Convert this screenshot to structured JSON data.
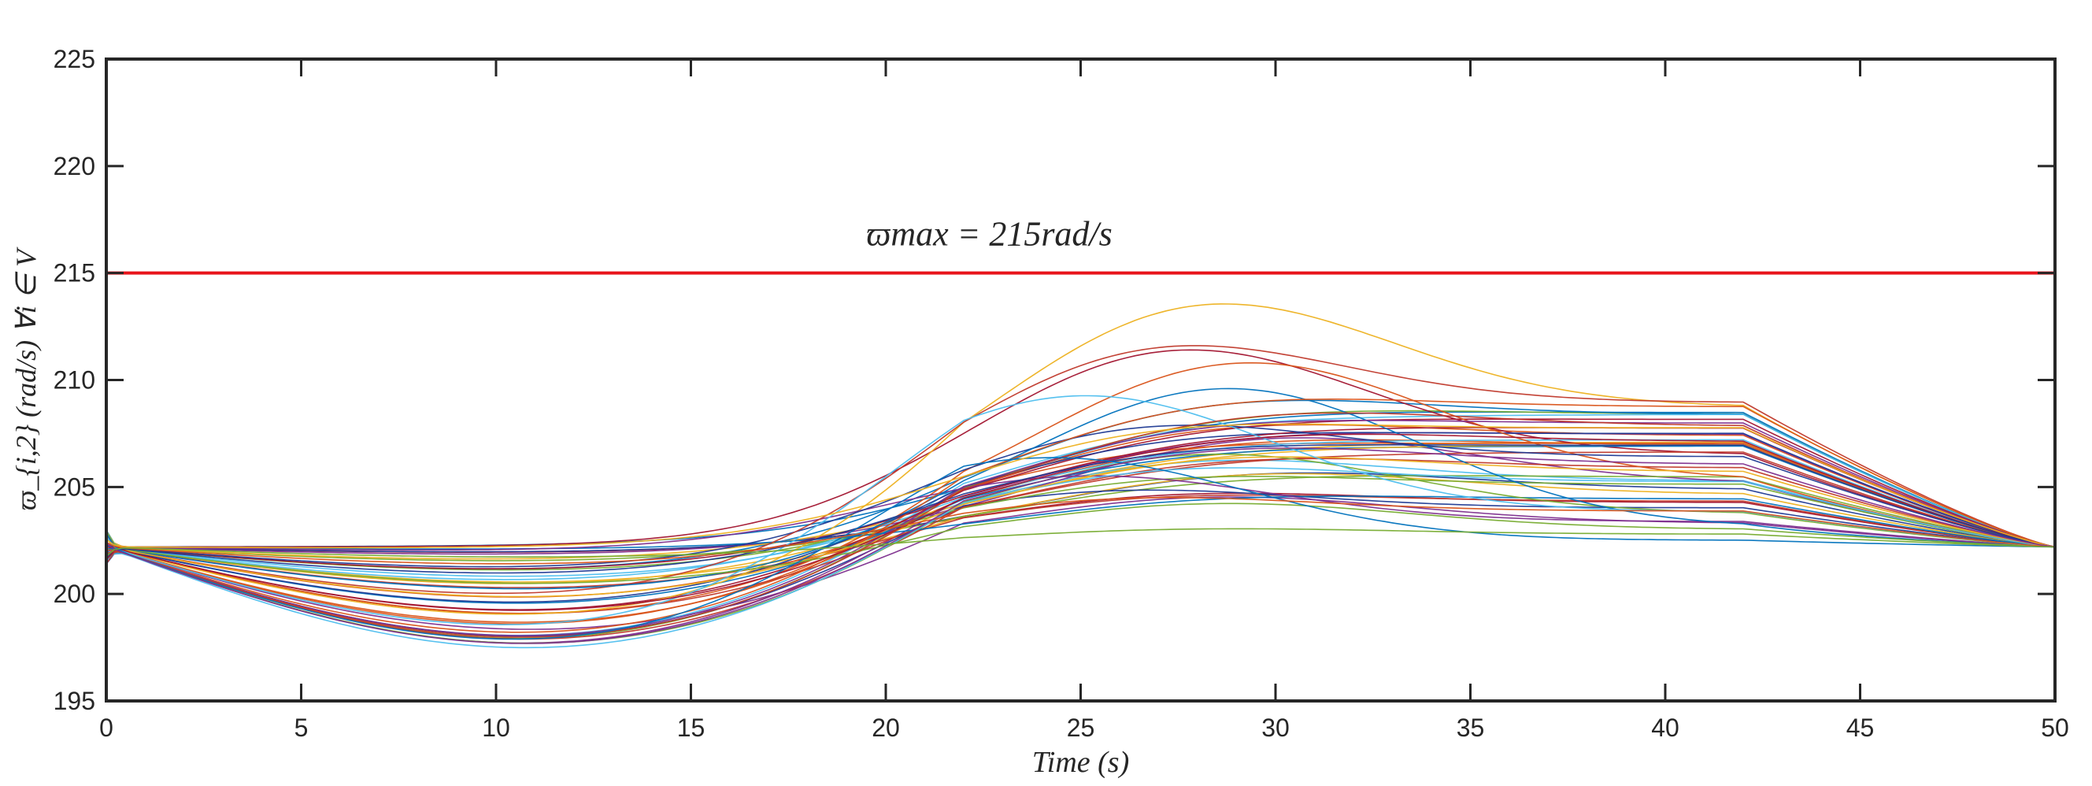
{
  "chart_data": {
    "type": "line",
    "title": "",
    "xlabel": "Time (s)",
    "ylabel": "ϖ_{i,2} (rad/s)   ∀i ∈ V",
    "xlim": [
      0,
      50
    ],
    "ylim": [
      195,
      225
    ],
    "xticks": [
      "0",
      "5",
      "10",
      "15",
      "20",
      "25",
      "30",
      "35",
      "40",
      "45",
      "50"
    ],
    "yticks": [
      "195",
      "200",
      "205",
      "210",
      "215",
      "220",
      "225"
    ],
    "grid": false,
    "reference_line": {
      "label": "ϖmax = 215rad/s",
      "value": 215,
      "color": "#e8141b"
    },
    "series_count": 50,
    "start_value": 202.2,
    "end_value": 202.2,
    "series_colors": [
      "#0072BD",
      "#D95319",
      "#EDB120",
      "#7E2F8E",
      "#77AC30",
      "#4DBEEE",
      "#A2142F",
      "#1f3a93",
      "#c0392b"
    ],
    "series_summary": {
      "early_min_range_t_10": [
        197.2,
        202.3
      ],
      "late_max_range_t_39": [
        202.3,
        209.2
      ],
      "global_peak": {
        "x": 27.5,
        "y": 211.0
      }
    }
  }
}
